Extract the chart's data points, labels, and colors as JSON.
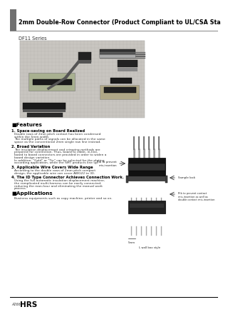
{
  "title": "2mm Double-Row Connector (Product Compliant to UL/CSA Standard)",
  "series": "DF11 Series",
  "bg_color": "#ffffff",
  "header_bar_color": "#707070",
  "title_color": "#000000",
  "features_header": "■Features",
  "features": [
    {
      "num": "1.",
      "heading": "Space-saving on Board Realized",
      "body": "Double rows of 2mm pitch contact has been condensed\nwithin the 5mm width.\nThe multiple paths of signals can be allocated in the same\nspace as the conventional 2mm single row line instead."
    },
    {
      "num": "2.",
      "heading": "Broad Variation",
      "body": "The insulation displacement and crimping methods are\nprepared for connection. Thus, board to cable, in-line,\nboard to board connectors are provided in order to widen a\nboard design variation.\nIn addition, \"Gold\" or \"Tin\" can be selected for the plating\naccording application, while the SMT products line up."
    },
    {
      "num": "3.",
      "heading": "Applicable Wire Covers Wide Range",
      "body": "According to the double rows of 2mm pitch compact\ndesign, the applicable wire can cover AWG22 to 30."
    },
    {
      "num": "4.",
      "heading": "The ID Type Connector Achieves Connection Work.",
      "body": "Using the full automatic insulation displacement machine,\nthe complicated multi-harness can be easily connected,\nreducing the man-hour and eliminating the manual work\nprocess."
    }
  ],
  "applications_header": "■Applications",
  "applications_body": "Business equipments such as copy machine, printer and so on.",
  "footer_left": "A266",
  "footer_brand": "HRS",
  "subtext_color": "#333333"
}
